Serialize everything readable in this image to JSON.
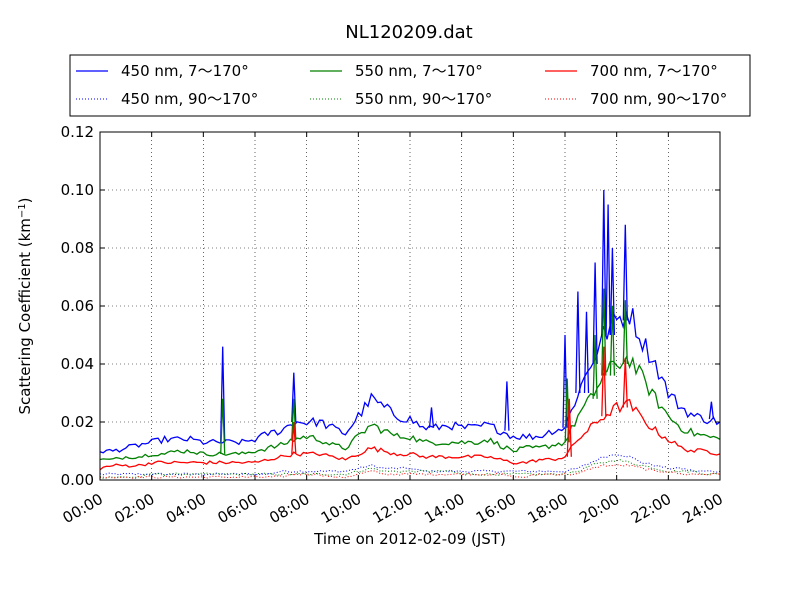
{
  "chart_data": {
    "type": "line",
    "title": "NL120209.dat",
    "xlabel": "Time on 2012-02-09 (JST)",
    "ylabel_main": "Scattering Coefficient (km",
    "ylabel_sup": "−1",
    "ylabel_end": ")",
    "xlim": [
      "00:00",
      "24:00"
    ],
    "ylim": [
      0.0,
      0.12
    ],
    "x_ticks": [
      "00:00",
      "02:00",
      "04:00",
      "06:00",
      "08:00",
      "10:00",
      "12:00",
      "14:00",
      "16:00",
      "18:00",
      "20:00",
      "22:00",
      "24:00"
    ],
    "y_ticks": [
      "0.00",
      "0.02",
      "0.04",
      "0.06",
      "0.08",
      "0.10",
      "0.12"
    ],
    "grid": true,
    "legend_position": "top",
    "x": [
      "00:00",
      "00:30",
      "01:00",
      "01:30",
      "02:00",
      "02:30",
      "03:00",
      "03:30",
      "04:00",
      "04:30",
      "05:00",
      "05:30",
      "06:00",
      "06:30",
      "07:00",
      "07:30",
      "08:00",
      "08:30",
      "09:00",
      "09:30",
      "10:00",
      "10:30",
      "11:00",
      "11:30",
      "12:00",
      "12:30",
      "13:00",
      "13:30",
      "14:00",
      "14:30",
      "15:00",
      "15:30",
      "16:00",
      "16:30",
      "17:00",
      "17:30",
      "18:00",
      "18:30",
      "19:00",
      "19:30",
      "20:00",
      "20:30",
      "21:00",
      "21:30",
      "22:00",
      "22:30",
      "23:00",
      "23:30",
      "24:00"
    ],
    "series": [
      {
        "name": "450 nm, 7～170°",
        "color": "#0000ff",
        "style": "solid",
        "values": [
          0.01,
          0.01,
          0.011,
          0.012,
          0.013,
          0.014,
          0.014,
          0.014,
          0.013,
          0.013,
          0.013,
          0.013,
          0.014,
          0.016,
          0.017,
          0.02,
          0.02,
          0.02,
          0.018,
          0.016,
          0.022,
          0.028,
          0.025,
          0.022,
          0.021,
          0.018,
          0.018,
          0.019,
          0.018,
          0.018,
          0.019,
          0.017,
          0.015,
          0.015,
          0.015,
          0.017,
          0.018,
          0.03,
          0.04,
          0.05,
          0.055,
          0.058,
          0.048,
          0.04,
          0.03,
          0.025,
          0.022,
          0.021,
          0.02
        ]
      },
      {
        "name": "450 nm, 90～170°",
        "color": "#0000ff",
        "style": "dotted",
        "values": [
          0.002,
          0.002,
          0.002,
          0.002,
          0.002,
          0.002,
          0.002,
          0.002,
          0.002,
          0.002,
          0.002,
          0.002,
          0.002,
          0.002,
          0.003,
          0.003,
          0.003,
          0.003,
          0.003,
          0.003,
          0.004,
          0.005,
          0.004,
          0.004,
          0.004,
          0.003,
          0.003,
          0.003,
          0.003,
          0.003,
          0.003,
          0.003,
          0.003,
          0.003,
          0.003,
          0.003,
          0.003,
          0.004,
          0.006,
          0.008,
          0.009,
          0.008,
          0.006,
          0.005,
          0.004,
          0.004,
          0.003,
          0.003,
          0.003
        ]
      },
      {
        "name": "550 nm, 7～170°",
        "color": "#008000",
        "style": "solid",
        "values": [
          0.007,
          0.007,
          0.008,
          0.008,
          0.009,
          0.009,
          0.01,
          0.01,
          0.009,
          0.009,
          0.009,
          0.009,
          0.01,
          0.011,
          0.012,
          0.014,
          0.015,
          0.014,
          0.012,
          0.011,
          0.015,
          0.019,
          0.017,
          0.015,
          0.015,
          0.013,
          0.013,
          0.013,
          0.013,
          0.013,
          0.014,
          0.012,
          0.01,
          0.011,
          0.011,
          0.012,
          0.013,
          0.022,
          0.028,
          0.036,
          0.04,
          0.042,
          0.035,
          0.028,
          0.022,
          0.018,
          0.016,
          0.015,
          0.014
        ]
      },
      {
        "name": "550 nm, 90～170°",
        "color": "#008000",
        "style": "dotted",
        "values": [
          0.001,
          0.001,
          0.001,
          0.001,
          0.002,
          0.002,
          0.002,
          0.002,
          0.002,
          0.002,
          0.002,
          0.002,
          0.002,
          0.002,
          0.002,
          0.002,
          0.002,
          0.002,
          0.002,
          0.002,
          0.003,
          0.004,
          0.003,
          0.003,
          0.003,
          0.003,
          0.003,
          0.003,
          0.002,
          0.002,
          0.002,
          0.002,
          0.002,
          0.002,
          0.002,
          0.002,
          0.002,
          0.003,
          0.005,
          0.006,
          0.007,
          0.006,
          0.005,
          0.004,
          0.003,
          0.003,
          0.003,
          0.002,
          0.002
        ]
      },
      {
        "name": "700 nm, 7～170°",
        "color": "#ff0000",
        "style": "solid",
        "values": [
          0.004,
          0.005,
          0.005,
          0.005,
          0.006,
          0.006,
          0.006,
          0.006,
          0.006,
          0.006,
          0.006,
          0.006,
          0.006,
          0.007,
          0.008,
          0.009,
          0.009,
          0.009,
          0.008,
          0.007,
          0.009,
          0.011,
          0.01,
          0.009,
          0.009,
          0.008,
          0.008,
          0.008,
          0.008,
          0.008,
          0.008,
          0.007,
          0.006,
          0.006,
          0.007,
          0.007,
          0.008,
          0.014,
          0.018,
          0.022,
          0.025,
          0.026,
          0.021,
          0.017,
          0.014,
          0.011,
          0.01,
          0.01,
          0.009
        ]
      },
      {
        "name": "700 nm, 90～170°",
        "color": "#ff0000",
        "style": "dotted",
        "values": [
          0.001,
          0.001,
          0.001,
          0.001,
          0.001,
          0.001,
          0.001,
          0.001,
          0.001,
          0.001,
          0.001,
          0.001,
          0.001,
          0.001,
          0.001,
          0.002,
          0.002,
          0.002,
          0.001,
          0.001,
          0.002,
          0.003,
          0.002,
          0.002,
          0.002,
          0.002,
          0.002,
          0.002,
          0.002,
          0.002,
          0.002,
          0.002,
          0.001,
          0.001,
          0.002,
          0.002,
          0.002,
          0.002,
          0.004,
          0.005,
          0.005,
          0.005,
          0.004,
          0.003,
          0.003,
          0.002,
          0.002,
          0.002,
          0.002
        ]
      }
    ],
    "spikes": [
      {
        "series": 0,
        "x": "04:45",
        "peak": 0.046
      },
      {
        "series": 2,
        "x": "04:45",
        "peak": 0.028
      },
      {
        "series": 0,
        "x": "07:30",
        "peak": 0.037
      },
      {
        "series": 2,
        "x": "07:30",
        "peak": 0.028
      },
      {
        "series": 4,
        "x": "07:30",
        "peak": 0.02
      },
      {
        "series": 0,
        "x": "12:50",
        "peak": 0.025
      },
      {
        "series": 0,
        "x": "15:45",
        "peak": 0.034
      },
      {
        "series": 0,
        "x": "18:00",
        "peak": 0.05
      },
      {
        "series": 2,
        "x": "18:05",
        "peak": 0.035
      },
      {
        "series": 4,
        "x": "18:10",
        "peak": 0.028
      },
      {
        "series": 0,
        "x": "18:30",
        "peak": 0.065
      },
      {
        "series": 0,
        "x": "18:50",
        "peak": 0.058
      },
      {
        "series": 0,
        "x": "19:10",
        "peak": 0.075
      },
      {
        "series": 2,
        "x": "19:10",
        "peak": 0.05
      },
      {
        "series": 0,
        "x": "19:30",
        "peak": 0.1
      },
      {
        "series": 2,
        "x": "19:30",
        "peak": 0.066
      },
      {
        "series": 4,
        "x": "19:30",
        "peak": 0.046
      },
      {
        "series": 0,
        "x": "19:40",
        "peak": 0.095
      },
      {
        "series": 0,
        "x": "19:50",
        "peak": 0.08
      },
      {
        "series": 2,
        "x": "19:50",
        "peak": 0.06
      },
      {
        "series": 0,
        "x": "20:20",
        "peak": 0.088
      },
      {
        "series": 2,
        "x": "20:20",
        "peak": 0.062
      },
      {
        "series": 4,
        "x": "20:20",
        "peak": 0.042
      },
      {
        "series": 0,
        "x": "23:40",
        "peak": 0.027
      }
    ]
  }
}
